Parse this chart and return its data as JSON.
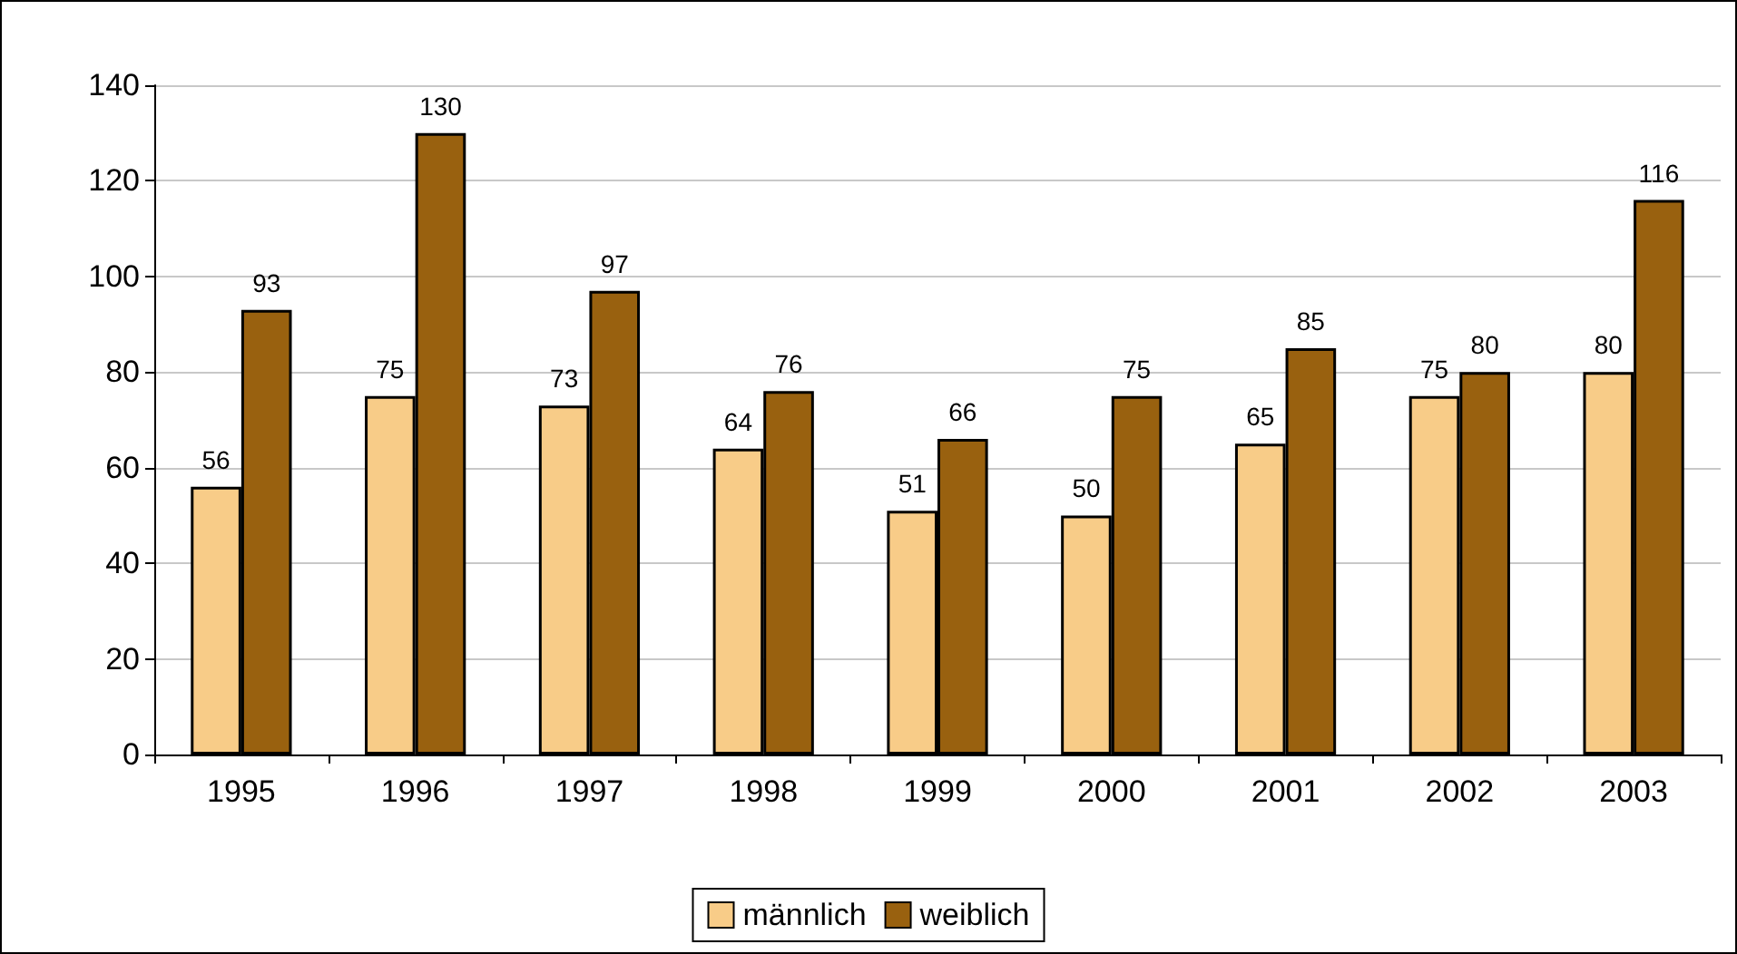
{
  "chart_data": {
    "type": "bar",
    "categories": [
      "1995",
      "1996",
      "1997",
      "1998",
      "1999",
      "2000",
      "2001",
      "2002",
      "2003"
    ],
    "series": [
      {
        "name": "männlich",
        "color": "#f8cc88",
        "values": [
          56,
          75,
          73,
          64,
          51,
          50,
          65,
          75,
          80
        ]
      },
      {
        "name": "weiblich",
        "color": "#99610f",
        "values": [
          93,
          130,
          97,
          76,
          66,
          75,
          85,
          80,
          116
        ]
      }
    ],
    "ylim": [
      0,
      140
    ],
    "yticks": [
      0,
      20,
      40,
      60,
      80,
      100,
      120,
      140
    ],
    "grid": "y",
    "legend": "bottom",
    "data_labels": true
  }
}
